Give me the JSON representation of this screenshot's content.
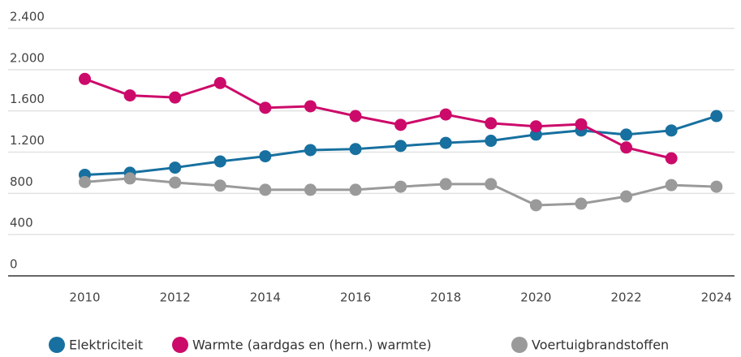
{
  "chart_data": {
    "type": "line",
    "x": [
      2010,
      2011,
      2012,
      2013,
      2014,
      2015,
      2016,
      2017,
      2018,
      2019,
      2020,
      2021,
      2022,
      2023,
      2024
    ],
    "xlim": [
      2008.3,
      2024.4
    ],
    "xticks": [
      2010,
      2012,
      2014,
      2016,
      2018,
      2020,
      2022,
      2024
    ],
    "ylim": [
      0,
      2400
    ],
    "yticks": [
      0,
      400,
      800,
      {
        "value": 1200,
        "label": "1.200"
      },
      {
        "value": 1600,
        "label": "1.600"
      },
      {
        "value": 2000,
        "label": "2.000"
      },
      {
        "value": 2400,
        "label": "2.400"
      }
    ],
    "grid": true,
    "legend": "bottom",
    "series": [
      {
        "name": "Elektriciteit",
        "color": "#17709f",
        "values": [
          980,
          1000,
          1050,
          1110,
          1160,
          1220,
          1230,
          1260,
          1290,
          1310,
          1370,
          1410,
          1370,
          1410,
          1550
        ]
      },
      {
        "name": "Warmte (aardgas en (hern.) warmte)",
        "color": "#cc0a6a",
        "values": [
          1910,
          1750,
          1730,
          1870,
          1630,
          1645,
          1550,
          1465,
          1565,
          1480,
          1450,
          1470,
          1245,
          1140,
          null
        ]
      },
      {
        "name": "Voertuigbrandstoffen",
        "color": "#9a9a9a",
        "values": [
          910,
          945,
          905,
          875,
          835,
          835,
          835,
          865,
          890,
          890,
          685,
          700,
          770,
          880,
          865
        ]
      }
    ]
  }
}
